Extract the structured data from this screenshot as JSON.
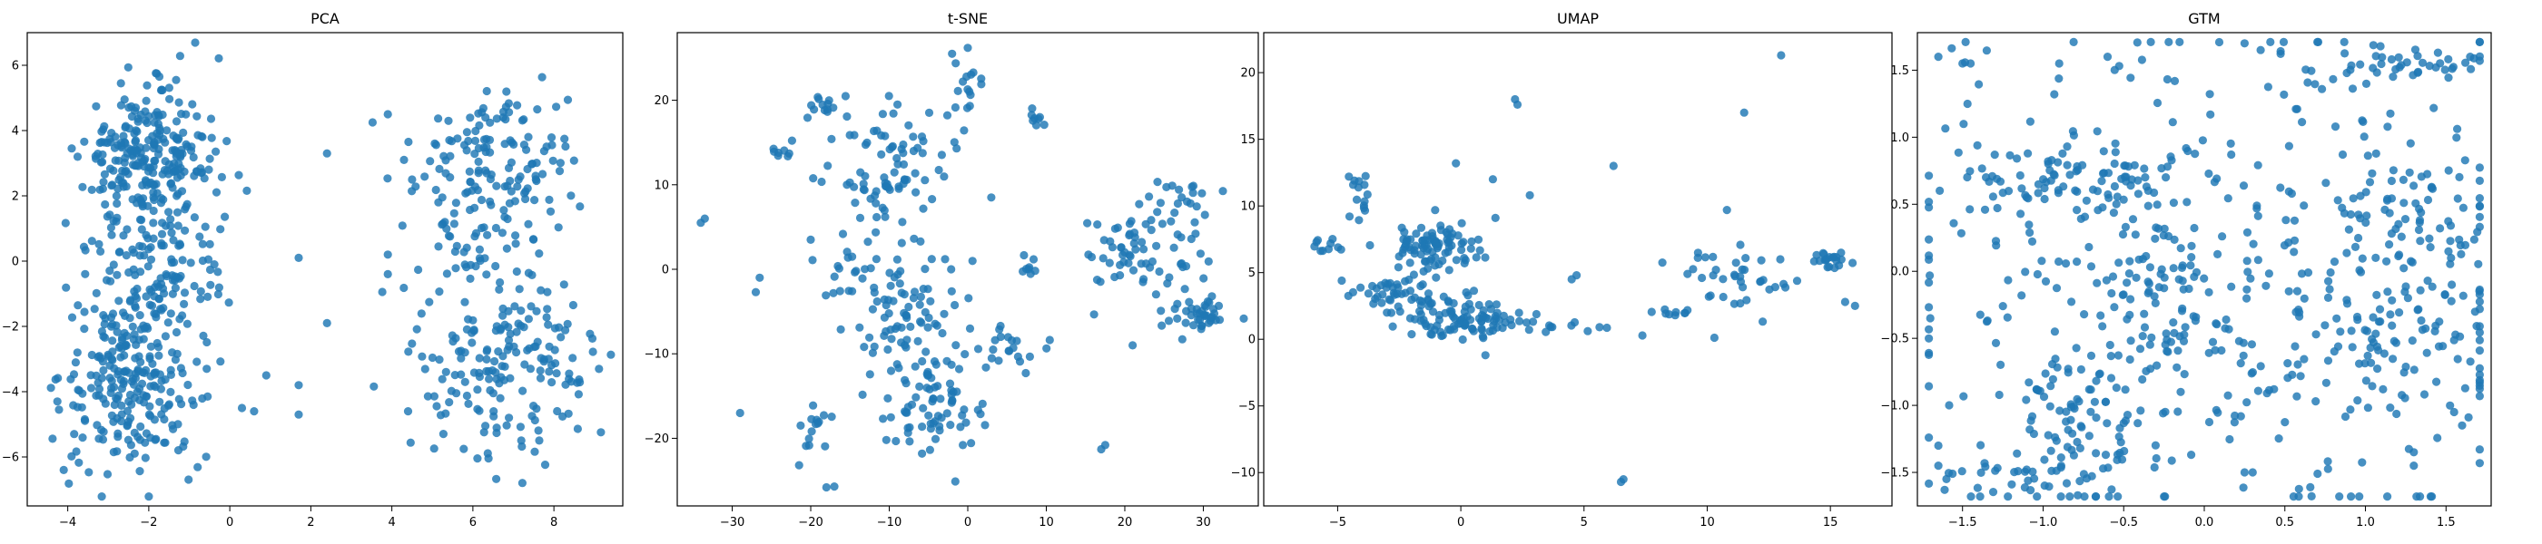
{
  "figure": {
    "point_color": "#1f77b4"
  },
  "chart_data": [
    {
      "type": "scatter",
      "title": "PCA",
      "xlabel": "",
      "ylabel": "",
      "xlim": [
        -5.0,
        9.7
      ],
      "ylim": [
        -7.5,
        7.0
      ],
      "x_ticks": [
        -4,
        -2,
        0,
        2,
        4,
        6,
        8
      ],
      "x_tick_labels": [
        "−4",
        "−2",
        "0",
        "2",
        "4",
        "6",
        "8"
      ],
      "y_ticks": [
        -6,
        -4,
        -2,
        0,
        2,
        4,
        6
      ],
      "y_tick_labels": [
        "−6",
        "−4",
        "−2",
        "0",
        "2",
        "4",
        "6"
      ],
      "grid": false,
      "clusters": [
        {
          "x": -2.1,
          "y": 3.2,
          "sx": 0.75,
          "sy": 1.0,
          "n": 230
        },
        {
          "x": -2.4,
          "y": -3.5,
          "sx": 0.85,
          "sy": 1.45,
          "n": 260
        },
        {
          "x": -2.0,
          "y": 0.2,
          "sx": 0.8,
          "sy": 1.3,
          "n": 90
        },
        {
          "x": -0.6,
          "y": 1.5,
          "sx": 0.6,
          "sy": 2.5,
          "n": 40
        },
        {
          "x": 6.6,
          "y": 3.0,
          "sx": 1.05,
          "sy": 1.35,
          "n": 150
        },
        {
          "x": 6.9,
          "y": -3.2,
          "sx": 1.05,
          "sy": 1.45,
          "n": 180
        },
        {
          "x": 6.2,
          "y": 0.2,
          "sx": 0.7,
          "sy": 0.5,
          "n": 25
        }
      ],
      "points": [
        [
          1.7,
          0.1
        ],
        [
          2.4,
          3.3
        ],
        [
          2.4,
          -1.9
        ],
        [
          1.7,
          -3.8
        ],
        [
          1.7,
          -4.7
        ],
        [
          3.9,
          4.5
        ],
        [
          3.9,
          -0.4
        ],
        [
          4.3,
          3.1
        ],
        [
          4.4,
          -4.6
        ],
        [
          4.5,
          2.5
        ],
        [
          3.9,
          0.2
        ],
        [
          -4.1,
          -6.4
        ],
        [
          0.3,
          -4.5
        ],
        [
          0.9,
          -3.5
        ],
        [
          0.6,
          -4.6
        ]
      ]
    },
    {
      "type": "scatter",
      "title": "t-SNE",
      "xlabel": "",
      "ylabel": "",
      "xlim": [
        -37,
        37
      ],
      "ylim": [
        -28,
        28
      ],
      "x_ticks": [
        -30,
        -20,
        -10,
        0,
        10,
        20,
        30
      ],
      "x_tick_labels": [
        "−30",
        "−20",
        "−10",
        "0",
        "10",
        "20",
        "30"
      ],
      "y_ticks": [
        -20,
        -10,
        0,
        10,
        20
      ],
      "y_tick_labels": [
        "−20",
        "−10",
        "0",
        "10",
        "20"
      ],
      "grid": false,
      "clusters": [
        {
          "x": -9.5,
          "y": 12.5,
          "sx": 3.5,
          "sy": 3.5,
          "n": 80
        },
        {
          "x": -8.0,
          "y": -5.0,
          "sx": 3.5,
          "sy": 4.5,
          "n": 90
        },
        {
          "x": -4.5,
          "y": -16.0,
          "sx": 3.5,
          "sy": 3.0,
          "n": 70
        },
        {
          "x": -19.0,
          "y": 19.5,
          "sx": 1.2,
          "sy": 0.8,
          "n": 12
        },
        {
          "x": -24.0,
          "y": 14.0,
          "sx": 0.8,
          "sy": 0.5,
          "n": 8
        },
        {
          "x": 22.0,
          "y": 2.0,
          "sx": 4.0,
          "sy": 3.0,
          "n": 60
        },
        {
          "x": 29.5,
          "y": -5.5,
          "sx": 1.8,
          "sy": 1.0,
          "n": 40
        },
        {
          "x": 27.0,
          "y": 8.0,
          "sx": 2.5,
          "sy": 1.5,
          "n": 25
        },
        {
          "x": 5.0,
          "y": -9.0,
          "sx": 2.5,
          "sy": 1.3,
          "n": 20
        },
        {
          "x": -19.0,
          "y": -20.0,
          "sx": 1.2,
          "sy": 1.5,
          "n": 15
        },
        {
          "x": 0.5,
          "y": 21.5,
          "sx": 1.2,
          "sy": 2.2,
          "n": 15
        },
        {
          "x": 8.5,
          "y": 17.8,
          "sx": 0.6,
          "sy": 0.5,
          "n": 8
        },
        {
          "x": 8.0,
          "y": 0.5,
          "sx": 0.7,
          "sy": 0.8,
          "n": 8
        },
        {
          "x": -16.0,
          "y": 0.0,
          "sx": 2.0,
          "sy": 2.5,
          "n": 15
        }
      ],
      "points": [
        [
          -34,
          5.5
        ],
        [
          -33.5,
          6
        ],
        [
          -29,
          -17
        ],
        [
          -27,
          -2.7
        ],
        [
          -26.5,
          -1
        ],
        [
          -18,
          -25.8
        ],
        [
          -17,
          -25.7
        ],
        [
          17,
          -21.3
        ],
        [
          17.5,
          -20.8
        ],
        [
          16.5,
          5.3
        ],
        [
          0,
          26.2
        ],
        [
          -2,
          25.5
        ],
        [
          -20,
          3.5
        ],
        [
          21,
          -9
        ],
        [
          3,
          8.5
        ]
      ]
    },
    {
      "type": "scatter",
      "title": "UMAP",
      "xlabel": "",
      "ylabel": "",
      "xlim": [
        -8.0,
        17.5
      ],
      "ylim": [
        -12.5,
        23.0
      ],
      "x_ticks": [
        -5,
        0,
        5,
        10,
        15
      ],
      "x_tick_labels": [
        "−5",
        "0",
        "5",
        "10",
        "15"
      ],
      "y_ticks": [
        -10,
        -5,
        0,
        5,
        10,
        15,
        20
      ],
      "y_tick_labels": [
        "−10",
        "−5",
        "0",
        "5",
        "10",
        "15",
        "20"
      ],
      "grid": false,
      "clusters": [
        {
          "x": -1.0,
          "y": 7.0,
          "sx": 1.0,
          "sy": 0.9,
          "n": 90
        },
        {
          "x": 0.0,
          "y": 1.5,
          "sx": 1.3,
          "sy": 0.8,
          "n": 90
        },
        {
          "x": -2.6,
          "y": 3.5,
          "sx": 1.0,
          "sy": 0.6,
          "n": 45
        },
        {
          "x": -4.0,
          "y": 10.5,
          "sx": 0.3,
          "sy": 1.0,
          "n": 15
        },
        {
          "x": -5.5,
          "y": 7.0,
          "sx": 0.6,
          "sy": 0.3,
          "n": 10
        },
        {
          "x": 3.5,
          "y": 1.0,
          "sx": 1.2,
          "sy": 0.3,
          "n": 15
        },
        {
          "x": 11.5,
          "y": 4.5,
          "sx": 1.2,
          "sy": 1.5,
          "n": 40
        },
        {
          "x": 15.0,
          "y": 5.8,
          "sx": 0.5,
          "sy": 0.4,
          "n": 20
        },
        {
          "x": 8.8,
          "y": 2.0,
          "sx": 0.4,
          "sy": 0.2,
          "n": 8
        }
      ],
      "points": [
        [
          6.5,
          -10.7
        ],
        [
          6.6,
          -10.5
        ],
        [
          2.2,
          18.0
        ],
        [
          2.3,
          17.6
        ],
        [
          13.0,
          21.3
        ],
        [
          11.5,
          17.0
        ],
        [
          6.2,
          13.0
        ],
        [
          10.8,
          9.7
        ],
        [
          1.3,
          12.0
        ],
        [
          -0.2,
          13.2
        ],
        [
          4.5,
          4.5
        ],
        [
          4.7,
          4.8
        ],
        [
          15.6,
          2.8
        ],
        [
          16.0,
          2.5
        ],
        [
          1.0,
          -1.2
        ],
        [
          2.8,
          10.8
        ],
        [
          -3.0,
          2.0
        ]
      ]
    },
    {
      "type": "scatter",
      "title": "GTM",
      "xlabel": "",
      "ylabel": "",
      "xlim": [
        -1.78,
        1.78
      ],
      "ylim": [
        -1.75,
        1.78
      ],
      "x_ticks": [
        -1.5,
        -1.0,
        -0.5,
        0.0,
        0.5,
        1.0,
        1.5
      ],
      "x_tick_labels": [
        "−1.5",
        "−1.0",
        "−0.5",
        "0.0",
        "0.5",
        "1.0",
        "1.5"
      ],
      "y_ticks": [
        -1.5,
        -1.0,
        -0.5,
        0.0,
        0.5,
        1.0,
        1.5
      ],
      "y_tick_labels": [
        "−1.5",
        "−1.0",
        "−0.5",
        "0.0",
        "0.5",
        "1.0",
        "1.5"
      ],
      "grid": false,
      "clusters": [
        {
          "x": 0.0,
          "y": 0.0,
          "sx": 0.95,
          "sy": 0.95,
          "n": 420
        },
        {
          "x": -0.8,
          "y": -1.2,
          "sx": 0.25,
          "sy": 0.3,
          "n": 90
        },
        {
          "x": -0.8,
          "y": 0.7,
          "sx": 0.3,
          "sy": 0.15,
          "n": 60
        },
        {
          "x": 1.3,
          "y": 0.3,
          "sx": 0.25,
          "sy": 0.3,
          "n": 70
        },
        {
          "x": 1.2,
          "y": 1.55,
          "sx": 0.3,
          "sy": 0.08,
          "n": 40
        },
        {
          "x": 1.2,
          "y": -0.5,
          "sx": 0.3,
          "sy": 0.3,
          "n": 60
        },
        {
          "x": -0.35,
          "y": -0.2,
          "sx": 0.15,
          "sy": 0.3,
          "n": 40
        },
        {
          "x": -1.3,
          "y": -1.5,
          "sx": 0.2,
          "sy": 0.08,
          "n": 15
        }
      ],
      "points": [
        [
          -1.65,
          1.6
        ],
        [
          -1.5,
          1.55
        ],
        [
          -1.45,
          1.55
        ],
        [
          -1.65,
          -1.3
        ],
        [
          -1.65,
          -1.45
        ],
        [
          -1.6,
          -1.55
        ],
        [
          1.55,
          -1.05
        ],
        [
          1.6,
          -1.15
        ],
        [
          1.3,
          -1.35
        ],
        [
          1.3,
          -1.45
        ],
        [
          0.25,
          1.7
        ],
        [
          0.35,
          1.65
        ],
        [
          -0.6,
          1.6
        ],
        [
          -0.9,
          1.55
        ],
        [
          0.25,
          -1.5
        ],
        [
          0.3,
          -1.5
        ],
        [
          -1.7,
          -0.35
        ],
        [
          1.65,
          1.6
        ]
      ]
    }
  ]
}
